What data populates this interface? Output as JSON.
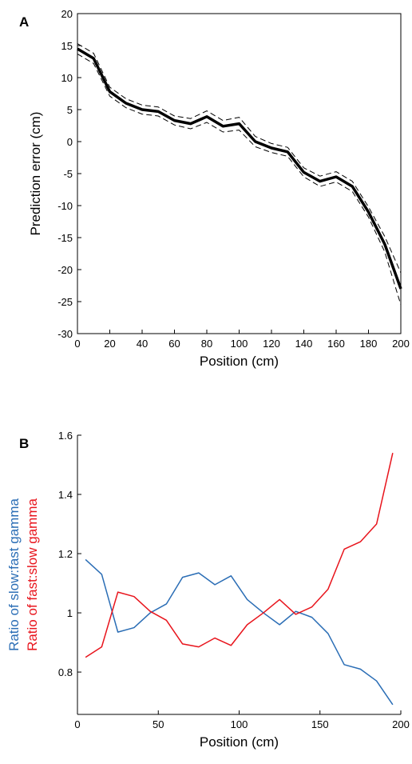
{
  "chart_data": [
    {
      "type": "line",
      "panel": "A",
      "xlabel": "Position (cm)",
      "ylabel": "Prediction error (cm)",
      "x": [
        0,
        10,
        20,
        30,
        40,
        50,
        60,
        70,
        80,
        90,
        100,
        110,
        120,
        130,
        140,
        150,
        160,
        170,
        180,
        190,
        200
      ],
      "series": [
        {
          "color": "#000000",
          "dash": false,
          "width": 3.5,
          "values": [
            14.5,
            13,
            7.8,
            6,
            5,
            4.7,
            3.3,
            2.8,
            3.9,
            2.4,
            2.8,
            0,
            -1,
            -1.6,
            -4.8,
            -6.2,
            -5.5,
            -7,
            -11,
            -16,
            -23
          ]
        },
        {
          "color": "#000000",
          "dash": true,
          "width": 1,
          "values": [
            15.3,
            13.8,
            8.5,
            6.7,
            5.7,
            5.4,
            4,
            3.6,
            4.8,
            3.3,
            3.8,
            0.8,
            -0.3,
            -0.9,
            -4.1,
            -5.4,
            -4.7,
            -6.2,
            -10.2,
            -14.8,
            -20.5
          ]
        },
        {
          "color": "#000000",
          "dash": true,
          "width": 1,
          "values": [
            13.7,
            12.2,
            7.1,
            5.3,
            4.3,
            4,
            2.6,
            2,
            3,
            1.5,
            1.8,
            -0.8,
            -1.7,
            -2.3,
            -5.5,
            -7,
            -6.3,
            -7.8,
            -11.8,
            -17.2,
            -25.5
          ]
        }
      ],
      "xlim": [
        0,
        200
      ],
      "xticks": [
        0,
        20,
        40,
        60,
        80,
        100,
        120,
        140,
        160,
        180,
        200
      ],
      "ylim": [
        -30,
        20
      ],
      "yticks": [
        -30,
        -25,
        -20,
        -15,
        -10,
        -5,
        0,
        5,
        10,
        15,
        20
      ],
      "box": true
    },
    {
      "type": "line",
      "panel": "B",
      "xlabel": "Position (cm)",
      "x": [
        5,
        15,
        25,
        35,
        45,
        55,
        65,
        75,
        85,
        95,
        105,
        115,
        125,
        135,
        145,
        155,
        165,
        175,
        185,
        195
      ],
      "series": [
        {
          "name": "Ratio of slow:fast gamma",
          "color": "#2a6db5",
          "dash": false,
          "width": 1.5,
          "values": [
            1.18,
            1.13,
            0.935,
            0.95,
            1,
            1.03,
            1.12,
            1.135,
            1.095,
            1.125,
            1.045,
            1,
            0.96,
            1.005,
            0.985,
            0.93,
            0.825,
            0.81,
            0.77,
            0.69
          ]
        },
        {
          "name": "Ratio of fast:slow gamma",
          "color": "#e8141c",
          "dash": false,
          "width": 1.5,
          "values": [
            0.85,
            0.885,
            1.07,
            1.055,
            1.005,
            0.975,
            0.895,
            0.885,
            0.915,
            0.89,
            0.96,
            1,
            1.045,
            0.995,
            1.02,
            1.08,
            1.215,
            1.24,
            1.3,
            1.54
          ]
        }
      ],
      "xlim": [
        0,
        200
      ],
      "xticks": [
        0,
        50,
        100,
        150,
        200
      ],
      "ylim": [
        0.657,
        1.6
      ],
      "yticks": [
        0.8,
        1,
        1.2,
        1.4,
        1.6
      ],
      "box": false
    }
  ]
}
